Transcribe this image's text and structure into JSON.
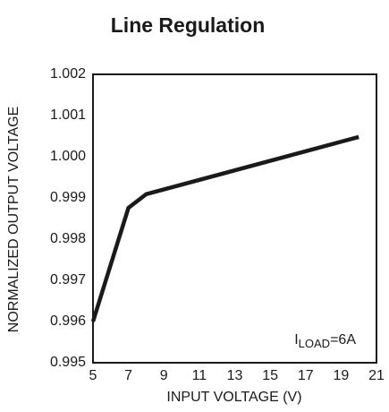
{
  "chart_data": {
    "type": "line",
    "title": "Line Regulation",
    "xlabel": "INPUT VOLTAGE (V)",
    "ylabel": "NORMALIZED OUTPUT VOLTAGE",
    "annotation": {
      "main": "I",
      "sub": "LOAD",
      "rest": "=6A"
    },
    "x": [
      5,
      7,
      8,
      20
    ],
    "series": [
      {
        "color": "#1a1a1a",
        "values": [
          0.996,
          0.99876,
          0.99909,
          1.00048
        ]
      }
    ],
    "xlim": [
      5,
      21
    ],
    "xticks": [
      5,
      7,
      9,
      11,
      13,
      15,
      17,
      19,
      21
    ],
    "ylim": [
      0.995,
      1.002
    ],
    "yticks": [
      0.995,
      0.996,
      0.997,
      0.998,
      0.999,
      {
        "value": 1,
        "label": "1.000"
      },
      1.001,
      1.002
    ],
    "grid": false
  }
}
